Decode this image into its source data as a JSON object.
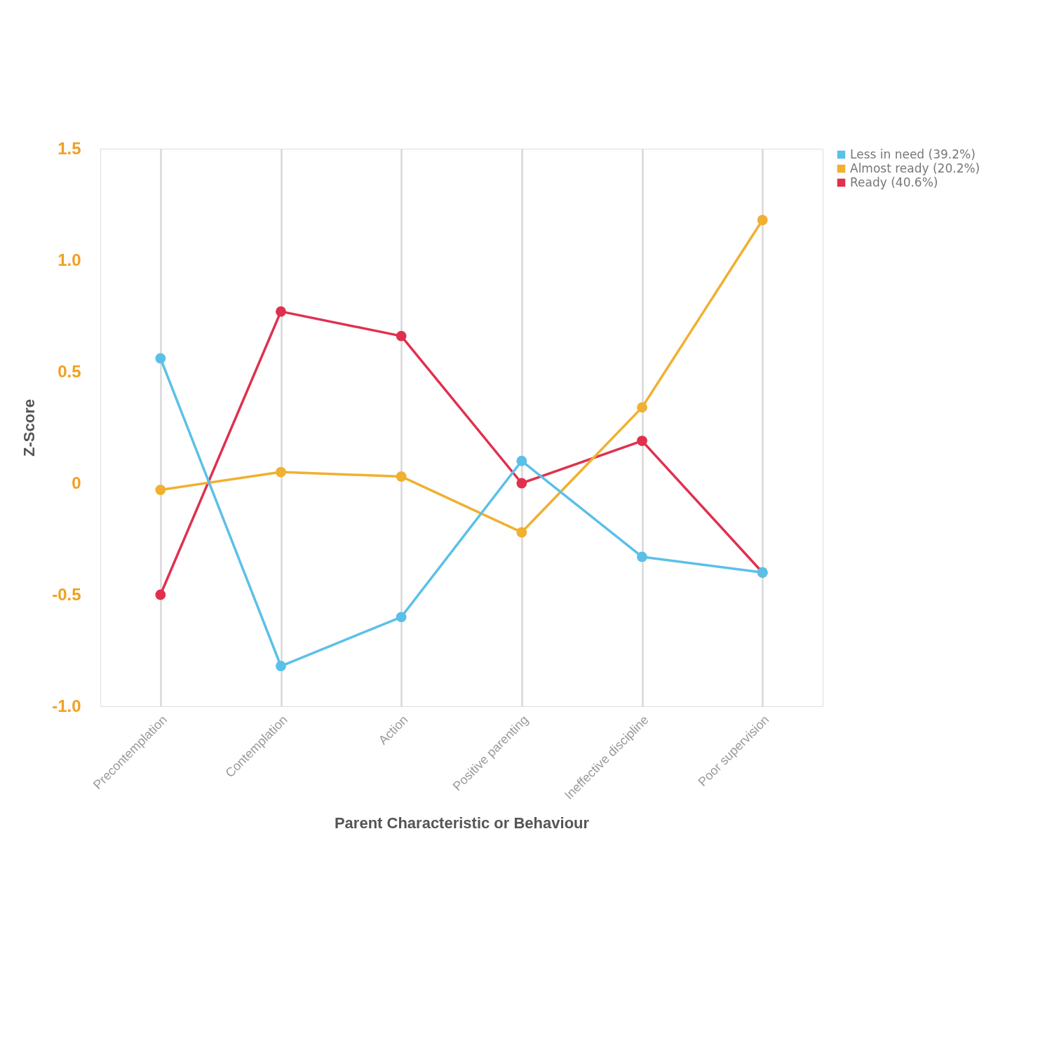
{
  "chart_data": {
    "type": "line",
    "xlabel": "Parent Characteristic or Behaviour",
    "ylabel": "Z-Score",
    "categories": [
      "Precontemplation",
      "Contemplation",
      "Action",
      "Positive parenting",
      "Ineffective discipline",
      "Poor supervision"
    ],
    "series": [
      {
        "name": "Less in need (39.2%)",
        "color": "#5bc0e8",
        "values": [
          0.56,
          -0.82,
          -0.6,
          0.1,
          -0.33,
          -0.4
        ]
      },
      {
        "name": "Almost ready (20.2%)",
        "color": "#f0b030",
        "values": [
          -0.03,
          0.05,
          0.03,
          -0.22,
          0.34,
          1.18
        ]
      },
      {
        "name": "Ready (40.6%)",
        "color": "#e0304e",
        "values": [
          -0.5,
          0.77,
          0.66,
          0.0,
          0.19,
          -0.4
        ]
      }
    ],
    "ylim": [
      -1.0,
      1.5
    ],
    "yticks": [
      {
        "value": 1.5,
        "label": "1.5"
      },
      {
        "value": 1.0,
        "label": "1.0"
      },
      {
        "value": 0.5,
        "label": "0.5"
      },
      0,
      {
        "value": -0.5,
        "label": "-0.5"
      },
      {
        "value": -1.0,
        "label": "-1.0"
      }
    ],
    "grid": "x",
    "legend": "top right",
    "marker": "circle",
    "line_style": "solid"
  }
}
